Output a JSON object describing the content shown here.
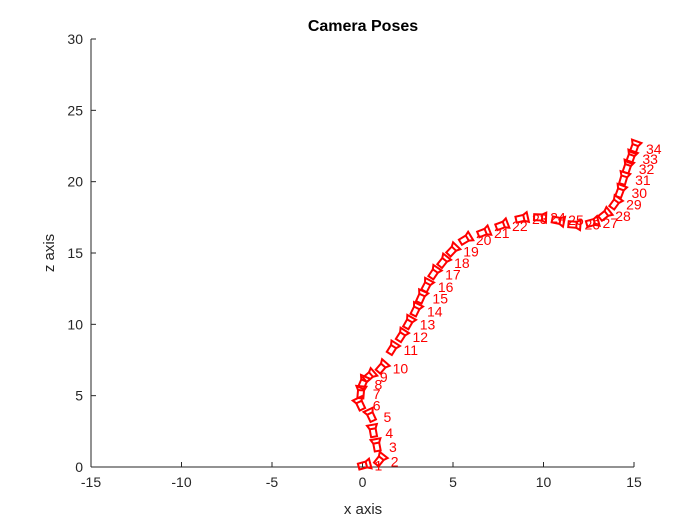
{
  "colors": {
    "pose": "#ff0000",
    "axis": "#262626"
  },
  "chart_data": {
    "type": "scatter",
    "title": "Camera Poses",
    "xlabel": "x axis",
    "ylabel": "z axis",
    "xlim": [
      -15,
      15
    ],
    "ylim": [
      0,
      30
    ],
    "xticks": [
      -15,
      -10,
      -5,
      0,
      5,
      10,
      15
    ],
    "yticks": [
      0,
      5,
      10,
      15,
      20,
      25,
      30
    ],
    "grid": false,
    "series": [
      {
        "points": [
          {
            "label": "1",
            "x": 0.0,
            "z": 0.1
          },
          {
            "label": "2",
            "x": 0.9,
            "z": 0.4
          },
          {
            "label": "3",
            "x": 0.8,
            "z": 1.4
          },
          {
            "label": "4",
            "x": 0.6,
            "z": 2.4
          },
          {
            "label": "5",
            "x": 0.5,
            "z": 3.5
          },
          {
            "label": "6",
            "x": -0.1,
            "z": 4.3
          },
          {
            "label": "7",
            "x": -0.1,
            "z": 5.1
          },
          {
            "label": "8",
            "x": 0.0,
            "z": 5.8
          },
          {
            "label": "9",
            "x": 0.3,
            "z": 6.3
          },
          {
            "label": "10",
            "x": 1.0,
            "z": 6.9
          },
          {
            "label": "11",
            "x": 1.6,
            "z": 8.2
          },
          {
            "label": "12",
            "x": 2.1,
            "z": 9.1
          },
          {
            "label": "13",
            "x": 2.5,
            "z": 10.0
          },
          {
            "label": "14",
            "x": 2.9,
            "z": 10.9
          },
          {
            "label": "15",
            "x": 3.2,
            "z": 11.8
          },
          {
            "label": "16",
            "x": 3.5,
            "z": 12.6
          },
          {
            "label": "17",
            "x": 3.9,
            "z": 13.5
          },
          {
            "label": "18",
            "x": 4.4,
            "z": 14.3
          },
          {
            "label": "19",
            "x": 4.9,
            "z": 15.1
          },
          {
            "label": "20",
            "x": 5.6,
            "z": 15.9
          },
          {
            "label": "21",
            "x": 6.6,
            "z": 16.4
          },
          {
            "label": "22",
            "x": 7.6,
            "z": 16.9
          },
          {
            "label": "23",
            "x": 8.7,
            "z": 17.4
          },
          {
            "label": "24",
            "x": 9.7,
            "z": 17.5
          },
          {
            "label": "25",
            "x": 10.7,
            "z": 17.3
          },
          {
            "label": "26",
            "x": 11.6,
            "z": 17.0
          },
          {
            "label": "27",
            "x": 12.6,
            "z": 17.1
          },
          {
            "label": "28",
            "x": 13.3,
            "z": 17.6
          },
          {
            "label": "29",
            "x": 13.9,
            "z": 18.4
          },
          {
            "label": "30",
            "x": 14.2,
            "z": 19.2
          },
          {
            "label": "31",
            "x": 14.4,
            "z": 20.1
          },
          {
            "label": "32",
            "x": 14.6,
            "z": 20.9
          },
          {
            "label": "33",
            "x": 14.8,
            "z": 21.6
          },
          {
            "label": "34",
            "x": 15.0,
            "z": 22.3
          }
        ]
      }
    ]
  }
}
